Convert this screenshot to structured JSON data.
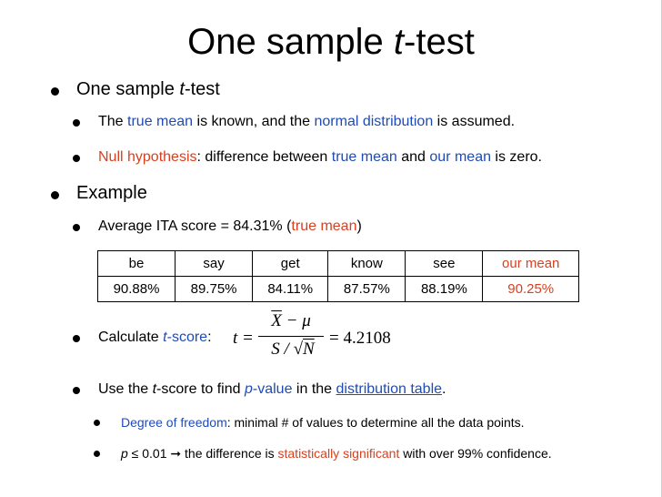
{
  "title": {
    "pre": "One sample ",
    "em": "t",
    "post": "-test"
  },
  "bullets": {
    "b1": {
      "pre": "One sample ",
      "em": "t",
      "post": "-test"
    },
    "b1a": {
      "p1": "The ",
      "h1": "true mean",
      "p2": " is known, and the ",
      "h2": "normal distribution",
      "p3": " is assumed."
    },
    "b1b": {
      "h1": "Null hypothesis",
      "p1": ": difference between ",
      "h2": "true mean",
      "p2": " and ",
      "h3": "our mean",
      "p3": " is zero."
    },
    "b2": {
      "label": "Example"
    },
    "b2a": {
      "p1": "Average ITA score = 84.31% (",
      "h1": "true mean",
      "p2": ")"
    },
    "b2b": {
      "p1": "Calculate ",
      "em": "t",
      "h1": "-score",
      "p2": ":"
    },
    "b2c": {
      "p1": "Use the ",
      "em": "t",
      "p2": "-score to find ",
      "em2": "p",
      "h1": "-value",
      "p3": " in the ",
      "link": "distribution table",
      "p4": "."
    },
    "b2c1": {
      "h1": "Degree of freedom",
      "p1": ": minimal # of values to determine all the data points."
    },
    "b2c2": {
      "em": "p",
      "p1": " ≤ 0.01 ➞ the difference is ",
      "h1": "statistically significant",
      "p2": " with over 99% confidence."
    }
  },
  "table": {
    "headers": [
      "be",
      "say",
      "get",
      "know",
      "see",
      "our mean"
    ],
    "values": [
      "90.88%",
      "89.75%",
      "84.11%",
      "87.57%",
      "88.19%",
      "90.25%"
    ]
  },
  "formula": {
    "lhs": "t =",
    "num_x": "X",
    "num_rest": " − μ",
    "den_s": "S / ",
    "den_n": "N",
    "rhs": "= 4.2108"
  },
  "colors": {
    "highlight_blue": "#1f4bb5",
    "highlight_red": "#d8401f"
  }
}
